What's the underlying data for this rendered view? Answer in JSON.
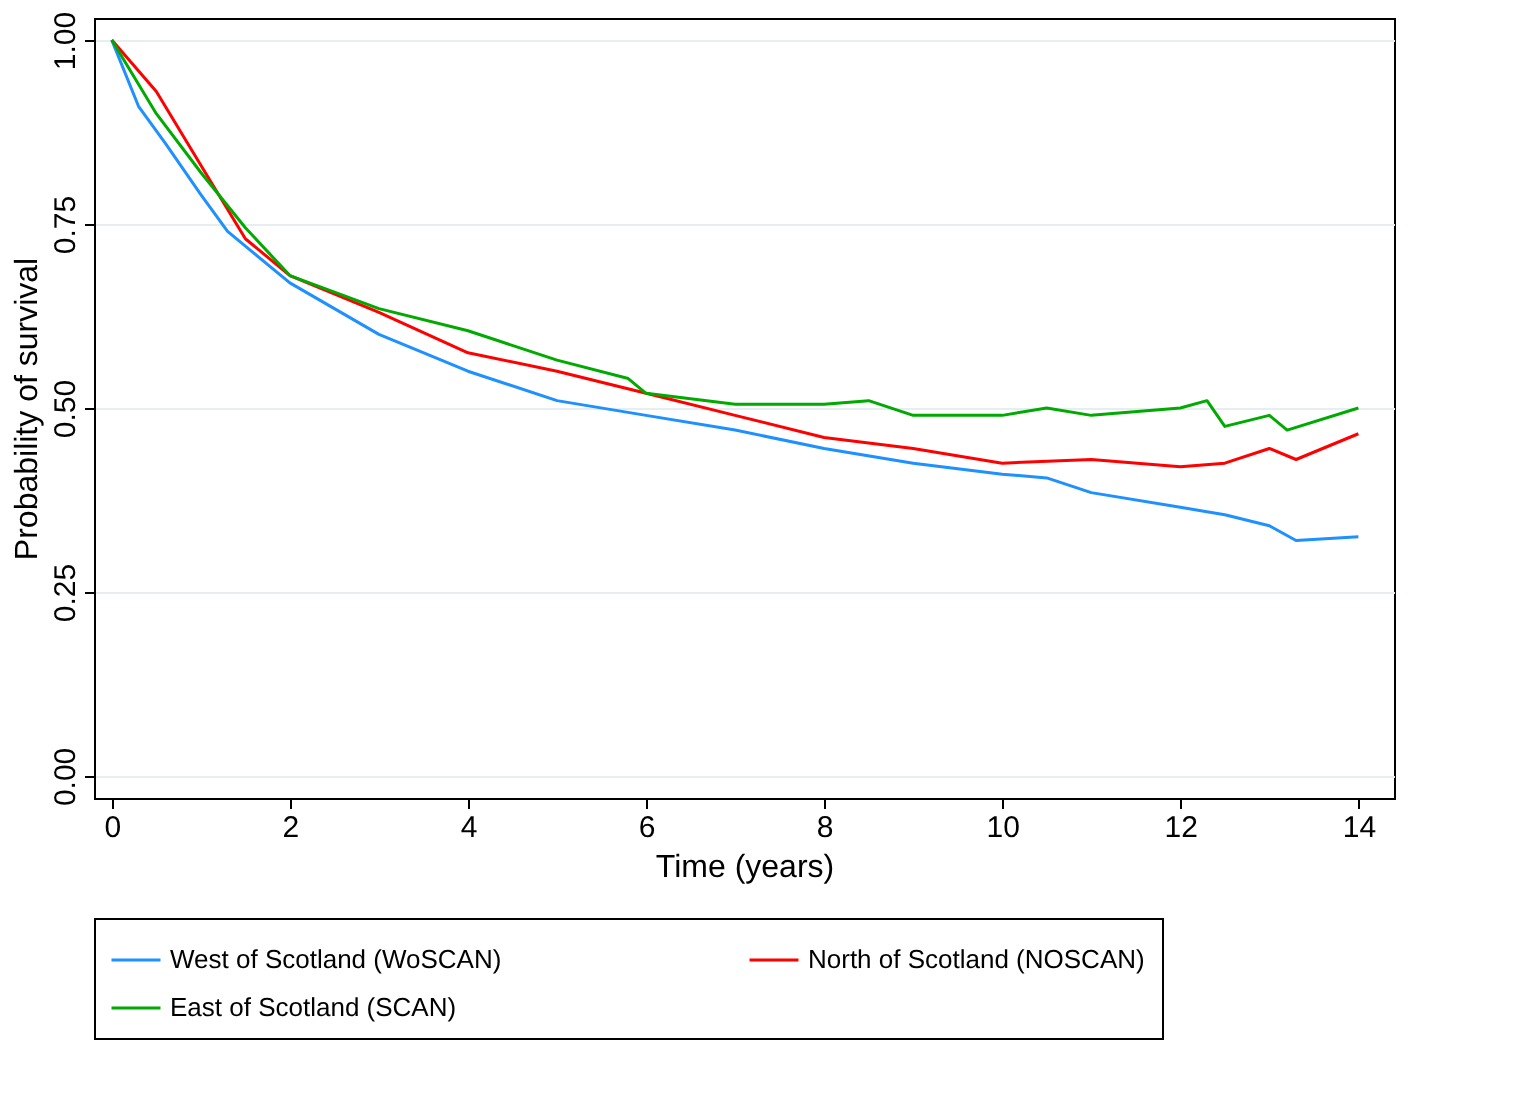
{
  "chart_data": {
    "type": "line",
    "xlabel": "Time (years)",
    "ylabel": "Probability of survival",
    "xlim": [
      -0.2,
      14.4
    ],
    "xticks": [
      0,
      2,
      4,
      6,
      8,
      10,
      12,
      14
    ],
    "ylim": [
      -0.03,
      1.03
    ],
    "yticks": [
      {
        "value": 0,
        "label": "0.00"
      },
      {
        "value": 0.25,
        "label": "0.25"
      },
      {
        "value": 0.5,
        "label": "0.50"
      },
      {
        "value": 0.75,
        "label": "0.75"
      },
      {
        "value": 1,
        "label": "1.00"
      }
    ],
    "grid": "y",
    "legend": "bottom",
    "line_style": "solid",
    "marker": "none",
    "series": [
      {
        "name": "West of Scotland (WoSCAN)",
        "color": "#1e90ff",
        "x": [
          0,
          0.3,
          0.6,
          1,
          1.3,
          2,
          3,
          4,
          5,
          6,
          7,
          8,
          9,
          10,
          10.5,
          11,
          12,
          12.5,
          13,
          13.3,
          14
        ],
        "values": [
          1.0,
          0.91,
          0.86,
          0.79,
          0.74,
          0.67,
          0.6,
          0.55,
          0.51,
          0.49,
          0.47,
          0.445,
          0.425,
          0.41,
          0.405,
          0.385,
          0.365,
          0.355,
          0.34,
          0.32,
          0.325
        ]
      },
      {
        "name": "North of Scotland (NOSCAN)",
        "color": "#ff0000",
        "x": [
          0,
          0.5,
          1,
          1.5,
          2,
          3,
          4,
          5,
          6,
          7,
          8,
          9,
          10,
          11,
          12,
          12.5,
          13,
          13.3,
          14
        ],
        "values": [
          1.0,
          0.93,
          0.83,
          0.73,
          0.68,
          0.63,
          0.575,
          0.55,
          0.52,
          0.49,
          0.46,
          0.445,
          0.425,
          0.43,
          0.42,
          0.425,
          0.445,
          0.43,
          0.465
        ]
      },
      {
        "name": "East of Scotland (SCAN)",
        "color": "#00aa00",
        "x": [
          0,
          0.5,
          1,
          1.5,
          2,
          3,
          4,
          5,
          5.8,
          6,
          7,
          8,
          8.5,
          9,
          10,
          10.5,
          11,
          12,
          12.3,
          12.5,
          13,
          13.2,
          14
        ],
        "values": [
          1.0,
          0.9,
          0.82,
          0.745,
          0.68,
          0.635,
          0.605,
          0.565,
          0.54,
          0.52,
          0.505,
          0.505,
          0.51,
          0.49,
          0.49,
          0.5,
          0.49,
          0.5,
          0.51,
          0.475,
          0.49,
          0.47,
          0.5
        ]
      }
    ]
  }
}
